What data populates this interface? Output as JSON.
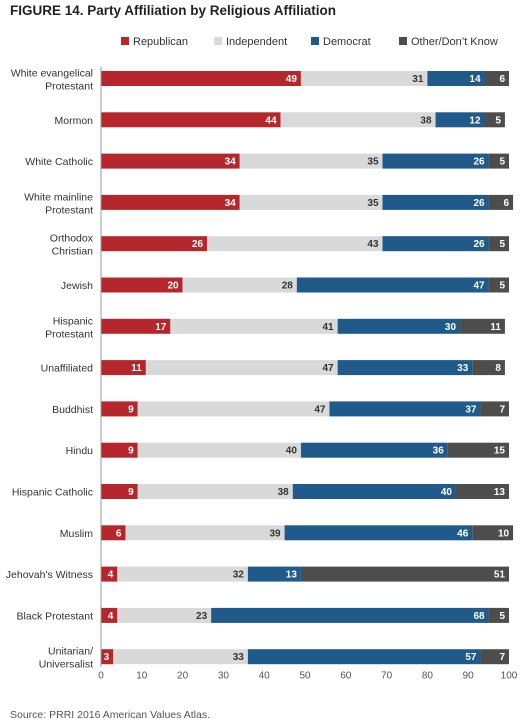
{
  "chart_data": {
    "type": "bar",
    "orientation": "horizontal",
    "stacked": true,
    "title": "FIGURE 14.  Party Affiliation by Religious Affiliation",
    "source": "Source: PRRI 2016 American Values Atlas.",
    "legend_position": "top",
    "xlim": [
      0,
      100
    ],
    "xticks": [
      0,
      10,
      20,
      30,
      40,
      50,
      60,
      70,
      80,
      90,
      100
    ],
    "grid": false,
    "categories": [
      [
        "White evangelical",
        "Protestant"
      ],
      [
        "Mormon"
      ],
      [
        "White Catholic"
      ],
      [
        "White mainline",
        "Protestant"
      ],
      [
        "Orthodox",
        "Christian"
      ],
      [
        "Jewish"
      ],
      [
        "Hispanic",
        "Protestant"
      ],
      [
        "Unaffiliated"
      ],
      [
        "Buddhist"
      ],
      [
        "Hindu"
      ],
      [
        "Hispanic Catholic"
      ],
      [
        "Muslim"
      ],
      [
        "Jehovah's Witness"
      ],
      [
        "Black Protestant"
      ],
      [
        "Unitarian/",
        "Universalist"
      ]
    ],
    "series": [
      {
        "name": "Republican",
        "color": "#b5272d",
        "label_color": "#ffffff",
        "values": [
          49,
          44,
          34,
          34,
          26,
          20,
          17,
          11,
          9,
          9,
          9,
          6,
          4,
          4,
          3
        ]
      },
      {
        "name": "Independent",
        "color": "#d9d9d9",
        "label_color": "#333333",
        "values": [
          31,
          38,
          35,
          35,
          43,
          28,
          41,
          47,
          47,
          40,
          38,
          39,
          32,
          23,
          33
        ]
      },
      {
        "name": "Democrat",
        "color": "#1f5a8a",
        "label_color": "#ffffff",
        "values": [
          14,
          12,
          26,
          26,
          26,
          47,
          30,
          33,
          37,
          36,
          40,
          46,
          13,
          68,
          57
        ]
      },
      {
        "name": "Other/Don’t Know",
        "color": "#4d4d4d",
        "label_color": "#ffffff",
        "values": [
          6,
          5,
          5,
          6,
          5,
          5,
          11,
          8,
          7,
          15,
          13,
          10,
          51,
          5,
          7
        ]
      }
    ]
  }
}
